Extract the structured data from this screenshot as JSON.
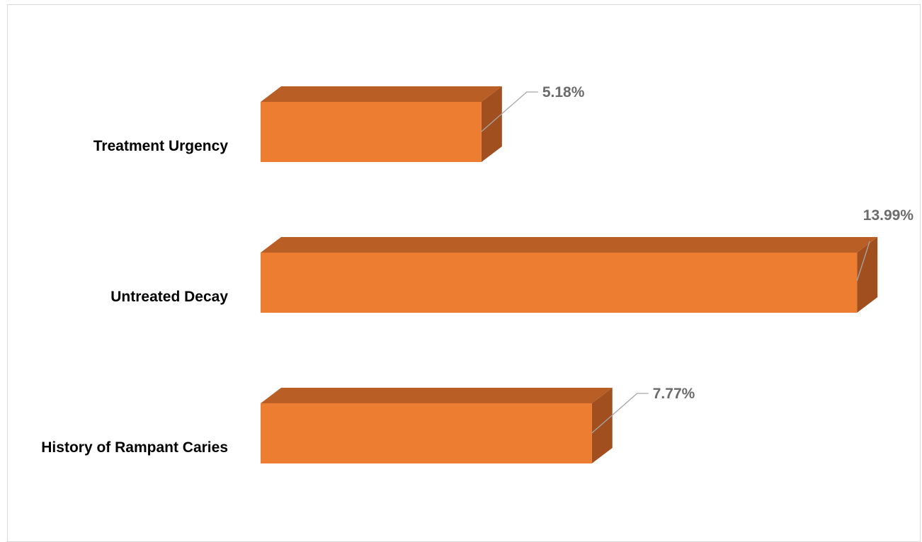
{
  "chart_data": {
    "type": "bar",
    "orientation": "horizontal",
    "style": "3d",
    "categories": [
      "Treatment Urgency",
      "Untreated Decay",
      "History of Rampant Caries"
    ],
    "values": [
      5.18,
      13.99,
      7.77
    ],
    "data_labels": [
      "5.18%",
      "13.99%",
      "7.77%"
    ],
    "title": "",
    "xlabel": "",
    "ylabel": "",
    "xlim": [
      0,
      14
    ],
    "grid": false,
    "legend": "none",
    "colors": {
      "front": "#ED7D31",
      "top": "#B95F26",
      "side": "#A14F1E",
      "data_label": "#6B6B6B",
      "leader": "#A6A6A6",
      "border": "#D9D9D9"
    }
  }
}
